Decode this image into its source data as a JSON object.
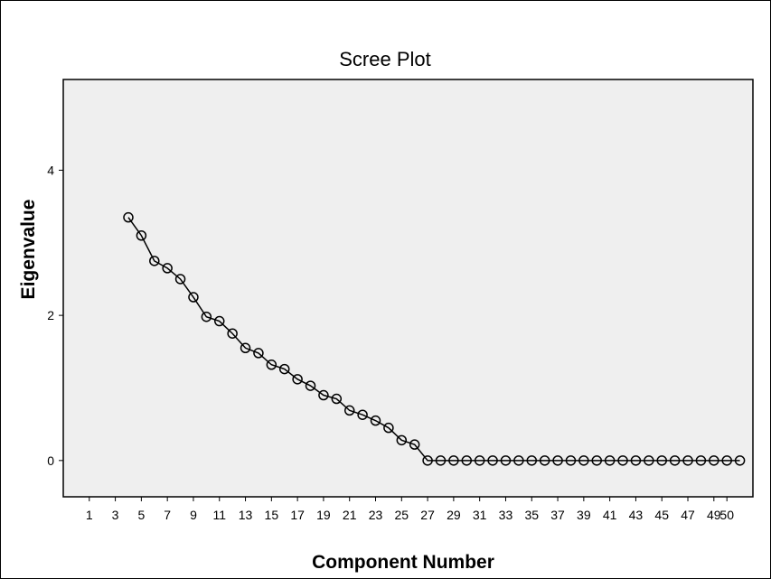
{
  "chart_data": {
    "type": "line",
    "title": "Scree Plot",
    "xlabel": "Component Number",
    "ylabel": "Eigenvalue",
    "xlim": [
      -1,
      52
    ],
    "ylim": [
      -0.5,
      5.25
    ],
    "xticks": [
      1,
      3,
      5,
      7,
      9,
      11,
      13,
      15,
      17,
      19,
      21,
      23,
      25,
      27,
      29,
      31,
      33,
      35,
      37,
      39,
      41,
      43,
      45,
      47,
      49,
      50
    ],
    "xtick_labels": [
      "1",
      "3",
      "5",
      "7",
      "9",
      "11",
      "13",
      "15",
      "17",
      "19",
      "21",
      "23",
      "25",
      "27",
      "29",
      "31",
      "33",
      "35",
      "37",
      "39",
      "41",
      "43",
      "45",
      "47",
      "49",
      "50"
    ],
    "yticks": [
      0,
      2,
      4
    ],
    "ytick_labels": [
      "0",
      "2",
      "4"
    ],
    "grid": false,
    "background": "#efefef",
    "line_color": "#000000",
    "marker": "open-circle",
    "series": [
      {
        "x": [
          4,
          5,
          6,
          7,
          8,
          9,
          10,
          11,
          12,
          13,
          14,
          15,
          16,
          17,
          18,
          19,
          20,
          21,
          22,
          23,
          24,
          25,
          26,
          27,
          28,
          29,
          30,
          31,
          32,
          33,
          34,
          35,
          36,
          37,
          38,
          39,
          40,
          41,
          42,
          43,
          44,
          45,
          46,
          47,
          48,
          49,
          50,
          51
        ],
        "values": [
          3.35,
          3.1,
          2.75,
          2.65,
          2.5,
          2.25,
          1.98,
          1.92,
          1.75,
          1.55,
          1.48,
          1.32,
          1.26,
          1.12,
          1.03,
          0.9,
          0.85,
          0.69,
          0.63,
          0.55,
          0.45,
          0.28,
          0.22,
          0,
          0,
          0,
          0,
          0,
          0,
          0,
          0,
          0,
          0,
          0,
          0,
          0,
          0,
          0,
          0,
          0,
          0,
          0,
          0,
          0,
          0,
          0,
          0,
          0
        ]
      }
    ]
  }
}
